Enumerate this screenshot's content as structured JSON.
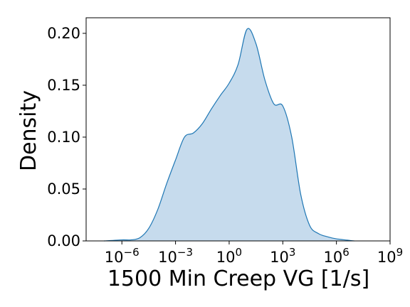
{
  "chart_data": {
    "type": "area",
    "title": "",
    "xlabel": "1500 Min Creep VG [1/s]",
    "ylabel": "Density",
    "x_scale": "log",
    "x_ticks": [
      {
        "value": 1e-06,
        "base": "10",
        "exp": "−6"
      },
      {
        "value": 0.001,
        "base": "10",
        "exp": "−3"
      },
      {
        "value": 1,
        "base": "10",
        "exp": "0"
      },
      {
        "value": 1000.0,
        "base": "10",
        "exp": "3"
      },
      {
        "value": 1000000.0,
        "base": "10",
        "exp": "6"
      },
      {
        "value": 1000000000.0,
        "base": "10",
        "exp": "9"
      }
    ],
    "y_ticks": [
      "0.00",
      "0.05",
      "0.10",
      "0.15",
      "0.20"
    ],
    "xlim": [
      1e-08,
      1000000000.0
    ],
    "ylim": [
      0,
      0.215
    ],
    "grid": false,
    "fill_color": "#c6dbed",
    "line_color": "#1f77b4",
    "series": [
      {
        "x": [
          1e-07,
          1e-06,
          3.16e-06,
          1e-05,
          3.16e-05,
          0.0001,
          0.000316,
          0.001,
          0.00316,
          0.01,
          0.0316,
          0.1,
          0.316,
          1,
          3.16,
          10,
          31.6,
          100,
          316,
          1000,
          3160,
          10000.0,
          31600.0,
          100000.0,
          316000.0,
          1000000.0,
          10000000.0
        ],
        "y": [
          0.0,
          0.001,
          0.001,
          0.003,
          0.012,
          0.03,
          0.055,
          0.078,
          0.1,
          0.104,
          0.113,
          0.127,
          0.14,
          0.152,
          0.17,
          0.204,
          0.19,
          0.155,
          0.132,
          0.13,
          0.1,
          0.045,
          0.015,
          0.007,
          0.004,
          0.002,
          0.0
        ]
      }
    ]
  }
}
